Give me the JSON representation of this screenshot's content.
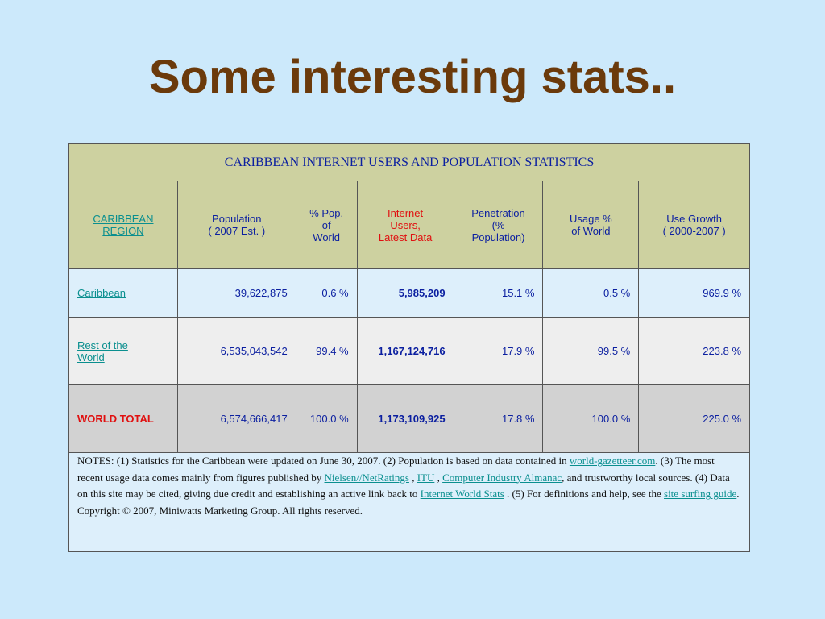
{
  "title": "Some interesting stats..",
  "table": {
    "banner": "CARIBBEAN INTERNET USERS AND POPULATION STATISTICS",
    "headers": {
      "region": [
        "CARIBBEAN",
        "REGION"
      ],
      "population": [
        "Population",
        "( 2007 Est. )"
      ],
      "pct_world": [
        "% Pop.",
        "of",
        "World"
      ],
      "internet_users": [
        "Internet",
        "Users,",
        "Latest Data"
      ],
      "penetration": [
        "Penetration",
        "(%",
        "Population)"
      ],
      "usage": [
        "Usage %",
        "of World"
      ],
      "growth": [
        "Use Growth",
        "( 2000-2007 )"
      ]
    },
    "rows": [
      {
        "region": [
          "Caribbean"
        ],
        "population": "39,622,875",
        "pct_world": "0.6 %",
        "internet_users": "5,985,209",
        "penetration": "15.1 %",
        "usage": "0.5 %",
        "growth": "969.9 %"
      },
      {
        "region": [
          "Rest of the",
          "World"
        ],
        "population": "6,535,043,542",
        "pct_world": "99.4 %",
        "internet_users": "1,167,124,716",
        "penetration": "17.9 %",
        "usage": "99.5 %",
        "growth": "223.8 %"
      },
      {
        "region": [
          "WORLD TOTAL"
        ],
        "population": "6,574,666,417",
        "pct_world": "100.0 %",
        "internet_users": "1,173,109,925",
        "penetration": "17.8 %",
        "usage": "100.0 %",
        "growth": "225.0 %"
      }
    ],
    "notes": {
      "t1": "NOTES: (1) Statistics for the Caribbean were updated on June 30, 2007. (2) Population is based on data contained in ",
      "l1": "world-gazetteer.com",
      "t2": ". (3) The most recent usage data comes mainly from figures published by ",
      "l2": "Nielsen//NetRatings",
      "t3": " , ",
      "l3": "ITU",
      "t4": " , ",
      "l4": "Computer Industry Almanac",
      "t5": ", and trustworthy local sources. (4) Data on this site may be cited, giving due credit and establishing an active link back to ",
      "l5": "Internet World Stats",
      "t6": " . (5) For definitions and help, see the ",
      "l6": "site surfing guide",
      "t7": ". Copyright © 2007, Miniwatts Marketing Group. All rights reserved."
    }
  }
}
